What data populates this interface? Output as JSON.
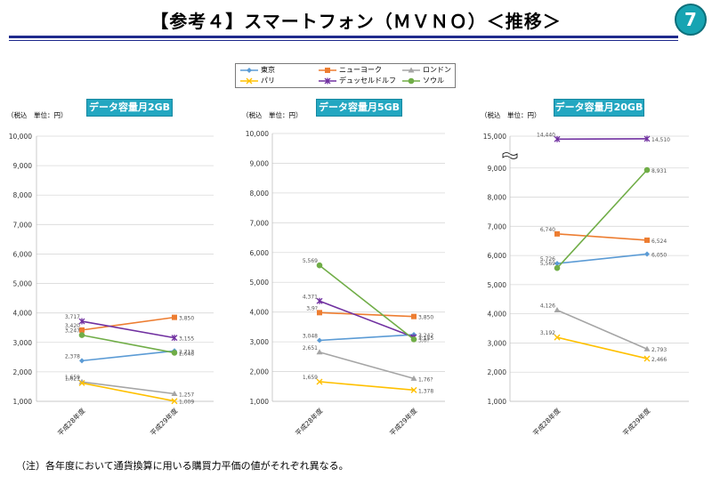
{
  "header": {
    "title": "【参考４】スマートフォン（ＭＶＮＯ）＜推移＞",
    "page_badge": "7"
  },
  "legend": [
    {
      "name": "東京",
      "color": "#5b9bd5",
      "marker": "diamond"
    },
    {
      "name": "ニューヨーク",
      "color": "#ed7d31",
      "marker": "square"
    },
    {
      "name": "ロンドン",
      "color": "#a5a5a5",
      "marker": "triangle"
    },
    {
      "name": "パリ",
      "color": "#ffc000",
      "marker": "x"
    },
    {
      "name": "デュッセルドルフ",
      "color": "#7030a0",
      "marker": "star"
    },
    {
      "name": "ソウル",
      "color": "#70ad47",
      "marker": "circle"
    }
  ],
  "tax_unit_label": "（税込　単位：円）",
  "footnote": "（注）各年度において通貨換算に用いる購買力平価の値がそれぞれ異なる。",
  "chart_data": [
    {
      "type": "line",
      "title": "データ容量月2GB",
      "categories": [
        "平成28年度",
        "平成29年度"
      ],
      "ylim": [
        1000,
        10000
      ],
      "yticks": [
        "1,000",
        "2,000",
        "3,000",
        "4,000",
        "5,000",
        "6,000",
        "7,000",
        "8,000",
        "9,000",
        "10,000"
      ],
      "series": [
        {
          "name": "東京",
          "values": [
            2378,
            2713
          ],
          "labels": [
            "2,378",
            "2,713"
          ]
        },
        {
          "name": "ニューヨーク",
          "values": [
            3420,
            3850
          ],
          "labels": [
            "3,420",
            "3,850"
          ]
        },
        {
          "name": "ロンドン",
          "values": [
            1659,
            1257
          ],
          "labels": [
            "1,659",
            "1,257"
          ]
        },
        {
          "name": "パリ",
          "values": [
            1621,
            1009
          ],
          "labels": [
            "1,621",
            "1,009"
          ]
        },
        {
          "name": "デュッセルドルフ",
          "values": [
            3717,
            3155
          ],
          "labels": [
            "3,717",
            "3,155"
          ]
        },
        {
          "name": "ソウル",
          "values": [
            3247,
            2648
          ],
          "labels": [
            "3,247",
            "2,648"
          ]
        }
      ]
    },
    {
      "type": "line",
      "title": "データ容量月5GB",
      "categories": [
        "平成28年度",
        "平成29年度"
      ],
      "ylim": [
        1000,
        10000
      ],
      "yticks": [
        "1,000",
        "2,000",
        "3,000",
        "4,000",
        "5,000",
        "6,000",
        "7,000",
        "8,000",
        "9,000",
        "10,000"
      ],
      "series": [
        {
          "name": "東京",
          "values": [
            3048,
            3242
          ],
          "labels": [
            "3,048",
            "3,242"
          ]
        },
        {
          "name": "ニューヨーク",
          "values": [
            3980,
            3850
          ],
          "labels": [
            "3,9?",
            "3,850"
          ]
        },
        {
          "name": "ロンドン",
          "values": [
            2651,
            1765
          ],
          "labels": [
            "2,651",
            "1,76?"
          ]
        },
        {
          "name": "パリ",
          "values": [
            1659,
            1378
          ],
          "labels": [
            "1,659",
            "1,378"
          ]
        },
        {
          "name": "デュッセルドルフ",
          "values": [
            4371,
            3155
          ],
          "labels": [
            "4,371",
            "3,155"
          ]
        },
        {
          "name": "ソウル",
          "values": [
            5569,
            3082
          ],
          "labels": [
            "5,569",
            "3,0?"
          ]
        }
      ]
    },
    {
      "type": "line",
      "title": "データ容量月20GB",
      "categories": [
        "平成28年度",
        "平成29年度"
      ],
      "ylim": [
        1000,
        15000
      ],
      "axis_break": true,
      "yticks": [
        "1,000",
        "2,000",
        "3,000",
        "4,000",
        "5,000",
        "6,000",
        "7,000",
        "8,000",
        "9,000",
        "15,000"
      ],
      "series": [
        {
          "name": "東京",
          "values": [
            5726,
            6050
          ],
          "labels": [
            "5,726",
            "6,050"
          ]
        },
        {
          "name": "ニューヨーク",
          "values": [
            6740,
            6524
          ],
          "labels": [
            "6,740",
            "6,524"
          ]
        },
        {
          "name": "ロンドン",
          "values": [
            4126,
            2793
          ],
          "labels": [
            "4,126",
            "2,793"
          ]
        },
        {
          "name": "パリ",
          "values": [
            3192,
            2466
          ],
          "labels": [
            "3,192",
            "2,466"
          ]
        },
        {
          "name": "デュッセルドルフ",
          "values": [
            14440,
            14510
          ],
          "labels": [
            "14,440",
            "14,510"
          ]
        },
        {
          "name": "ソウル",
          "values": [
            5569,
            8931
          ],
          "labels": [
            "5,569",
            "8,931"
          ]
        }
      ]
    }
  ]
}
